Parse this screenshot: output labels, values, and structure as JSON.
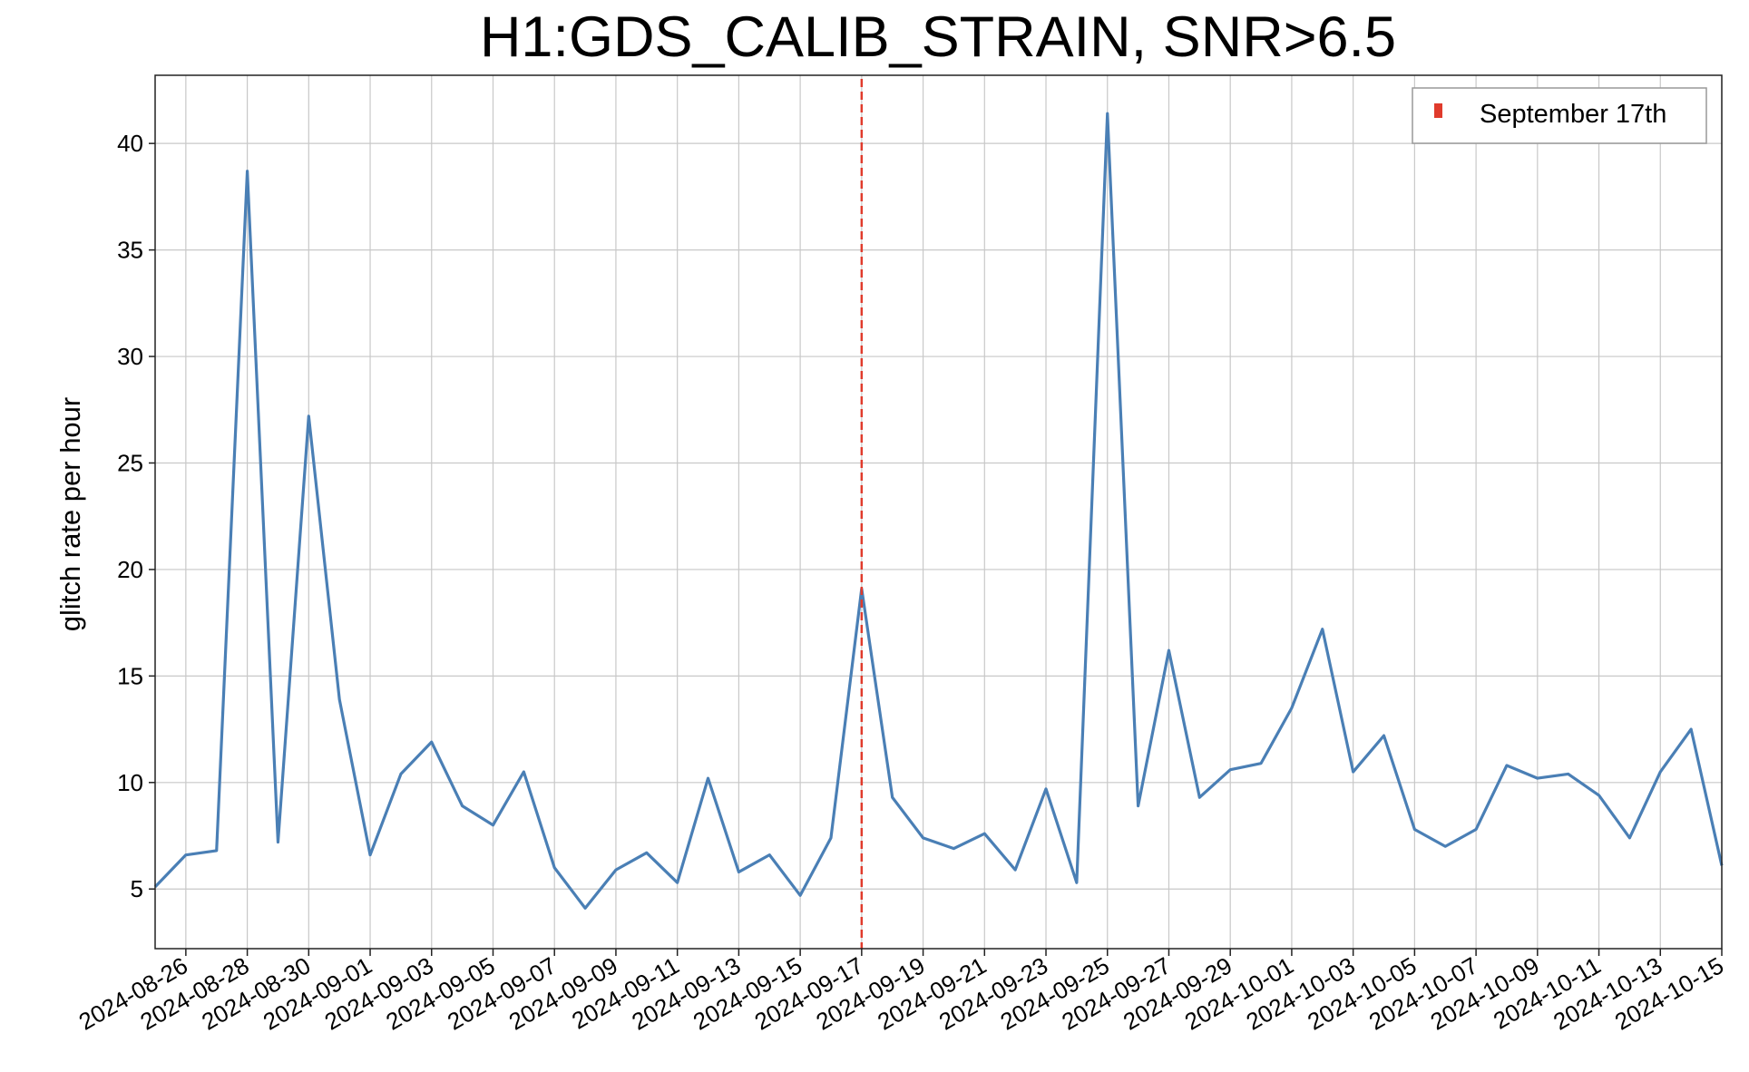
{
  "chart_data": {
    "type": "line",
    "title": "H1:GDS_CALIB_STRAIN, SNR>6.5",
    "xlabel": "",
    "ylabel": "glitch rate per hour",
    "x_range": [
      "2024-08-25",
      "2024-10-15"
    ],
    "ylim": [
      2.2,
      43.2
    ],
    "y_ticks": [
      5,
      10,
      15,
      20,
      25,
      30,
      35,
      40
    ],
    "x_ticks": [
      "2024-08-26",
      "2024-08-28",
      "2024-08-30",
      "2024-09-01",
      "2024-09-03",
      "2024-09-05",
      "2024-09-07",
      "2024-09-09",
      "2024-09-11",
      "2024-09-13",
      "2024-09-15",
      "2024-09-17",
      "2024-09-19",
      "2024-09-21",
      "2024-09-23",
      "2024-09-25",
      "2024-09-27",
      "2024-09-29",
      "2024-10-01",
      "2024-10-03",
      "2024-10-05",
      "2024-10-07",
      "2024-10-09",
      "2024-10-11",
      "2024-10-13",
      "2024-10-15"
    ],
    "grid": true,
    "series": [
      {
        "color": "#4a7fb5",
        "x": [
          "2024-08-25",
          "2024-08-26",
          "2024-08-27",
          "2024-08-28",
          "2024-08-29",
          "2024-08-30",
          "2024-08-31",
          "2024-09-01",
          "2024-09-02",
          "2024-09-03",
          "2024-09-04",
          "2024-09-05",
          "2024-09-06",
          "2024-09-07",
          "2024-09-08",
          "2024-09-09",
          "2024-09-10",
          "2024-09-11",
          "2024-09-12",
          "2024-09-13",
          "2024-09-14",
          "2024-09-15",
          "2024-09-16",
          "2024-09-17",
          "2024-09-18",
          "2024-09-19",
          "2024-09-20",
          "2024-09-21",
          "2024-09-22",
          "2024-09-23",
          "2024-09-24",
          "2024-09-25",
          "2024-09-26",
          "2024-09-27",
          "2024-09-28",
          "2024-09-29",
          "2024-09-30",
          "2024-10-01",
          "2024-10-02",
          "2024-10-03",
          "2024-10-04",
          "2024-10-05",
          "2024-10-06",
          "2024-10-07",
          "2024-10-08",
          "2024-10-09",
          "2024-10-10",
          "2024-10-11",
          "2024-10-12",
          "2024-10-13",
          "2024-10-14",
          "2024-10-15"
        ],
        "values": [
          5.1,
          6.6,
          6.8,
          38.7,
          7.2,
          27.2,
          13.9,
          6.6,
          10.4,
          11.9,
          8.9,
          8.0,
          10.5,
          6.0,
          4.1,
          5.9,
          6.7,
          5.3,
          10.2,
          5.8,
          6.6,
          4.7,
          7.4,
          19.1,
          9.3,
          7.4,
          6.9,
          7.6,
          5.9,
          9.7,
          5.3,
          41.4,
          8.9,
          16.2,
          9.3,
          10.6,
          10.9,
          13.5,
          17.2,
          10.5,
          12.2,
          7.8,
          7.0,
          7.8,
          10.8,
          10.2,
          10.4,
          9.4,
          7.4,
          10.5,
          12.5,
          6.1
        ]
      }
    ],
    "event_marker": {
      "date": "2024-09-17",
      "label": "September 17th",
      "color": "#e03b2c",
      "style": "dashed"
    },
    "legend": {
      "placement": "top-right",
      "entries": [
        "September 17th"
      ]
    }
  }
}
